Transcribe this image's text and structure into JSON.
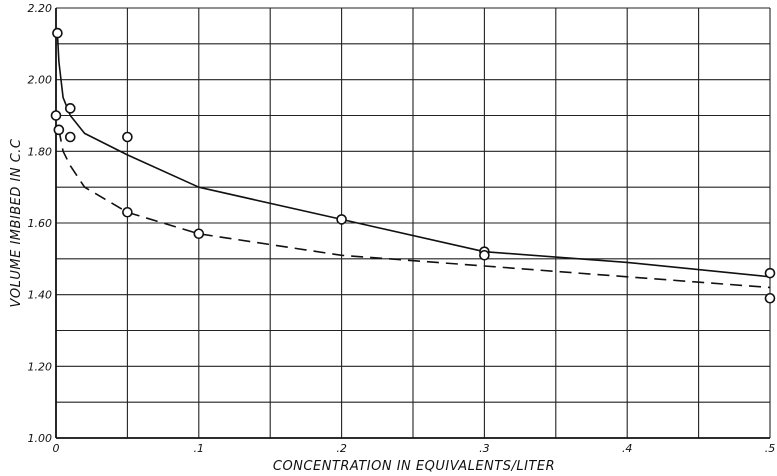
{
  "chart_data": {
    "type": "scatter",
    "title": "",
    "xlabel": "CONCENTRATION IN EQUIVALENTS/LITER",
    "ylabel": "VOLUME IMBIBED IN C.C",
    "xlim": [
      0,
      0.5
    ],
    "ylim": [
      1.0,
      2.2
    ],
    "grid": true,
    "x_ticks": [
      {
        "value": 0,
        "label": "0"
      },
      {
        "value": 0.1,
        "label": ".1"
      },
      {
        "value": 0.2,
        "label": ".2"
      },
      {
        "value": 0.3,
        "label": ".3"
      },
      {
        "value": 0.4,
        "label": ".4"
      },
      {
        "value": 0.5,
        "label": ".5"
      }
    ],
    "y_ticks": [
      {
        "value": 1.0,
        "label": "1.00"
      },
      {
        "value": 1.2,
        "label": "1.20"
      },
      {
        "value": 1.4,
        "label": "1.40"
      },
      {
        "value": 1.6,
        "label": "1.60"
      },
      {
        "value": 1.8,
        "label": "1.80"
      },
      {
        "value": 2.0,
        "label": "2.00"
      },
      {
        "value": 2.2,
        "label": "2.20"
      }
    ],
    "series": [
      {
        "style": "solid",
        "points": [
          [
            0.001,
            2.13
          ],
          [
            0.01,
            1.92
          ],
          [
            0.05,
            1.84
          ],
          [
            0.2,
            1.61
          ],
          [
            0.3,
            1.52
          ],
          [
            0.5,
            1.46
          ]
        ],
        "curve": [
          [
            0.001,
            2.13
          ],
          [
            0.002,
            2.05
          ],
          [
            0.005,
            1.95
          ],
          [
            0.01,
            1.9
          ],
          [
            0.02,
            1.85
          ],
          [
            0.05,
            1.79
          ],
          [
            0.1,
            1.7
          ],
          [
            0.2,
            1.61
          ],
          [
            0.3,
            1.52
          ],
          [
            0.4,
            1.49
          ],
          [
            0.5,
            1.45
          ]
        ]
      },
      {
        "style": "dashed",
        "points": [
          [
            0.0,
            1.9
          ],
          [
            0.002,
            1.86
          ],
          [
            0.01,
            1.84
          ],
          [
            0.05,
            1.63
          ],
          [
            0.1,
            1.57
          ],
          [
            0.3,
            1.51
          ],
          [
            0.5,
            1.39
          ]
        ],
        "curve": [
          [
            0.002,
            1.86
          ],
          [
            0.005,
            1.8
          ],
          [
            0.01,
            1.76
          ],
          [
            0.02,
            1.7
          ],
          [
            0.05,
            1.63
          ],
          [
            0.1,
            1.57
          ],
          [
            0.2,
            1.51
          ],
          [
            0.3,
            1.48
          ],
          [
            0.4,
            1.45
          ],
          [
            0.5,
            1.42
          ]
        ]
      }
    ]
  }
}
